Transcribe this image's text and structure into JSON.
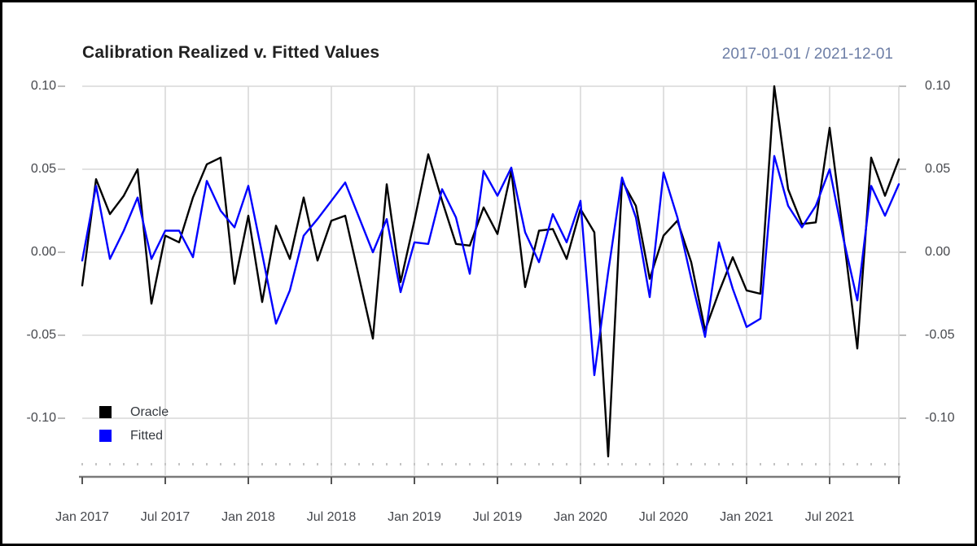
{
  "window": {
    "background": "#ffffff",
    "border_color": "#000000"
  },
  "header": {
    "title": "Calibration Realized v. Fitted Values",
    "date_range": "2017-01-01 / 2021-12-01"
  },
  "legend": {
    "items": [
      {
        "label": "Oracle",
        "color": "#000000"
      },
      {
        "label": "Fitted",
        "color": "#0000ff"
      }
    ]
  },
  "colors": {
    "gridline": "#d8d8d8",
    "axis_line": "#7a7a7a",
    "major_tick": "#555555",
    "minor_tick": "#c4c4c4",
    "y_tick_stub": "#b5b5b5"
  },
  "chart_data": {
    "type": "line",
    "title": "Calibration Realized v. Fitted Values",
    "subtitle_right": "2017-01-01 / 2021-12-01",
    "xlabel": "",
    "ylabel": "",
    "grid": true,
    "legend_position": "inside-bottom-left",
    "ylim": [
      -0.134,
      0.107
    ],
    "y_ticks": [
      0.1,
      0.05,
      0.0,
      -0.05,
      -0.1
    ],
    "y_tick_labels": [
      "0.10",
      "0.05",
      "0.00",
      "-0.05",
      "-0.10"
    ],
    "x_tick_labels": [
      "Jan 2017",
      "Jul 2017",
      "Jan 2018",
      "Jul 2018",
      "Jan 2019",
      "Jul 2019",
      "Jan 2020",
      "Jul 2020",
      "Jan 2021",
      "Jul 2021"
    ],
    "x_tick_month_indices": [
      0,
      6,
      12,
      18,
      24,
      30,
      36,
      42,
      48,
      54
    ],
    "x": [
      "2017-01",
      "2017-02",
      "2017-03",
      "2017-04",
      "2017-05",
      "2017-06",
      "2017-07",
      "2017-08",
      "2017-09",
      "2017-10",
      "2017-11",
      "2017-12",
      "2018-01",
      "2018-02",
      "2018-03",
      "2018-04",
      "2018-05",
      "2018-06",
      "2018-07",
      "2018-08",
      "2018-09",
      "2018-10",
      "2018-11",
      "2018-12",
      "2019-01",
      "2019-02",
      "2019-03",
      "2019-04",
      "2019-05",
      "2019-06",
      "2019-07",
      "2019-08",
      "2019-09",
      "2019-10",
      "2019-11",
      "2019-12",
      "2020-01",
      "2020-02",
      "2020-03",
      "2020-04",
      "2020-05",
      "2020-06",
      "2020-07",
      "2020-08",
      "2020-09",
      "2020-10",
      "2020-11",
      "2020-12",
      "2021-01",
      "2021-02",
      "2021-03",
      "2021-04",
      "2021-05",
      "2021-06",
      "2021-07",
      "2021-08",
      "2021-09",
      "2021-10",
      "2021-11",
      "2021-12"
    ],
    "series": [
      {
        "name": "Oracle",
        "color": "#000000",
        "values": [
          -0.02,
          0.044,
          0.023,
          0.034,
          0.05,
          -0.031,
          0.01,
          0.006,
          0.033,
          0.053,
          0.057,
          -0.019,
          0.022,
          -0.03,
          0.016,
          -0.004,
          0.033,
          -0.005,
          0.019,
          0.022,
          -0.015,
          -0.052,
          0.041,
          -0.018,
          0.019,
          0.059,
          0.031,
          0.005,
          0.004,
          0.027,
          0.011,
          0.049,
          -0.021,
          0.013,
          0.014,
          -0.004,
          0.026,
          0.012,
          -0.123,
          0.043,
          0.028,
          -0.016,
          0.01,
          0.019,
          -0.006,
          -0.047,
          -0.024,
          -0.003,
          -0.023,
          -0.025,
          0.1,
          0.038,
          0.017,
          0.018,
          0.075,
          0.01,
          -0.058,
          0.057,
          0.034,
          0.056
        ]
      },
      {
        "name": "Fitted",
        "color": "#0000ff",
        "values": [
          -0.005,
          0.04,
          -0.004,
          0.013,
          0.033,
          -0.004,
          0.013,
          0.013,
          -0.003,
          0.043,
          0.025,
          0.015,
          0.04,
          -0.001,
          -0.043,
          -0.023,
          0.01,
          0.02,
          0.031,
          0.042,
          0.021,
          0.0,
          0.02,
          -0.024,
          0.006,
          0.005,
          0.038,
          0.021,
          -0.013,
          0.049,
          0.034,
          0.051,
          0.012,
          -0.006,
          0.023,
          0.006,
          0.031,
          -0.074,
          -0.012,
          0.045,
          0.021,
          -0.027,
          0.048,
          0.021,
          -0.016,
          -0.051,
          0.006,
          -0.022,
          -0.045,
          -0.04,
          0.058,
          0.028,
          0.015,
          0.028,
          0.05,
          0.008,
          -0.029,
          0.04,
          0.022,
          0.041
        ]
      }
    ]
  }
}
